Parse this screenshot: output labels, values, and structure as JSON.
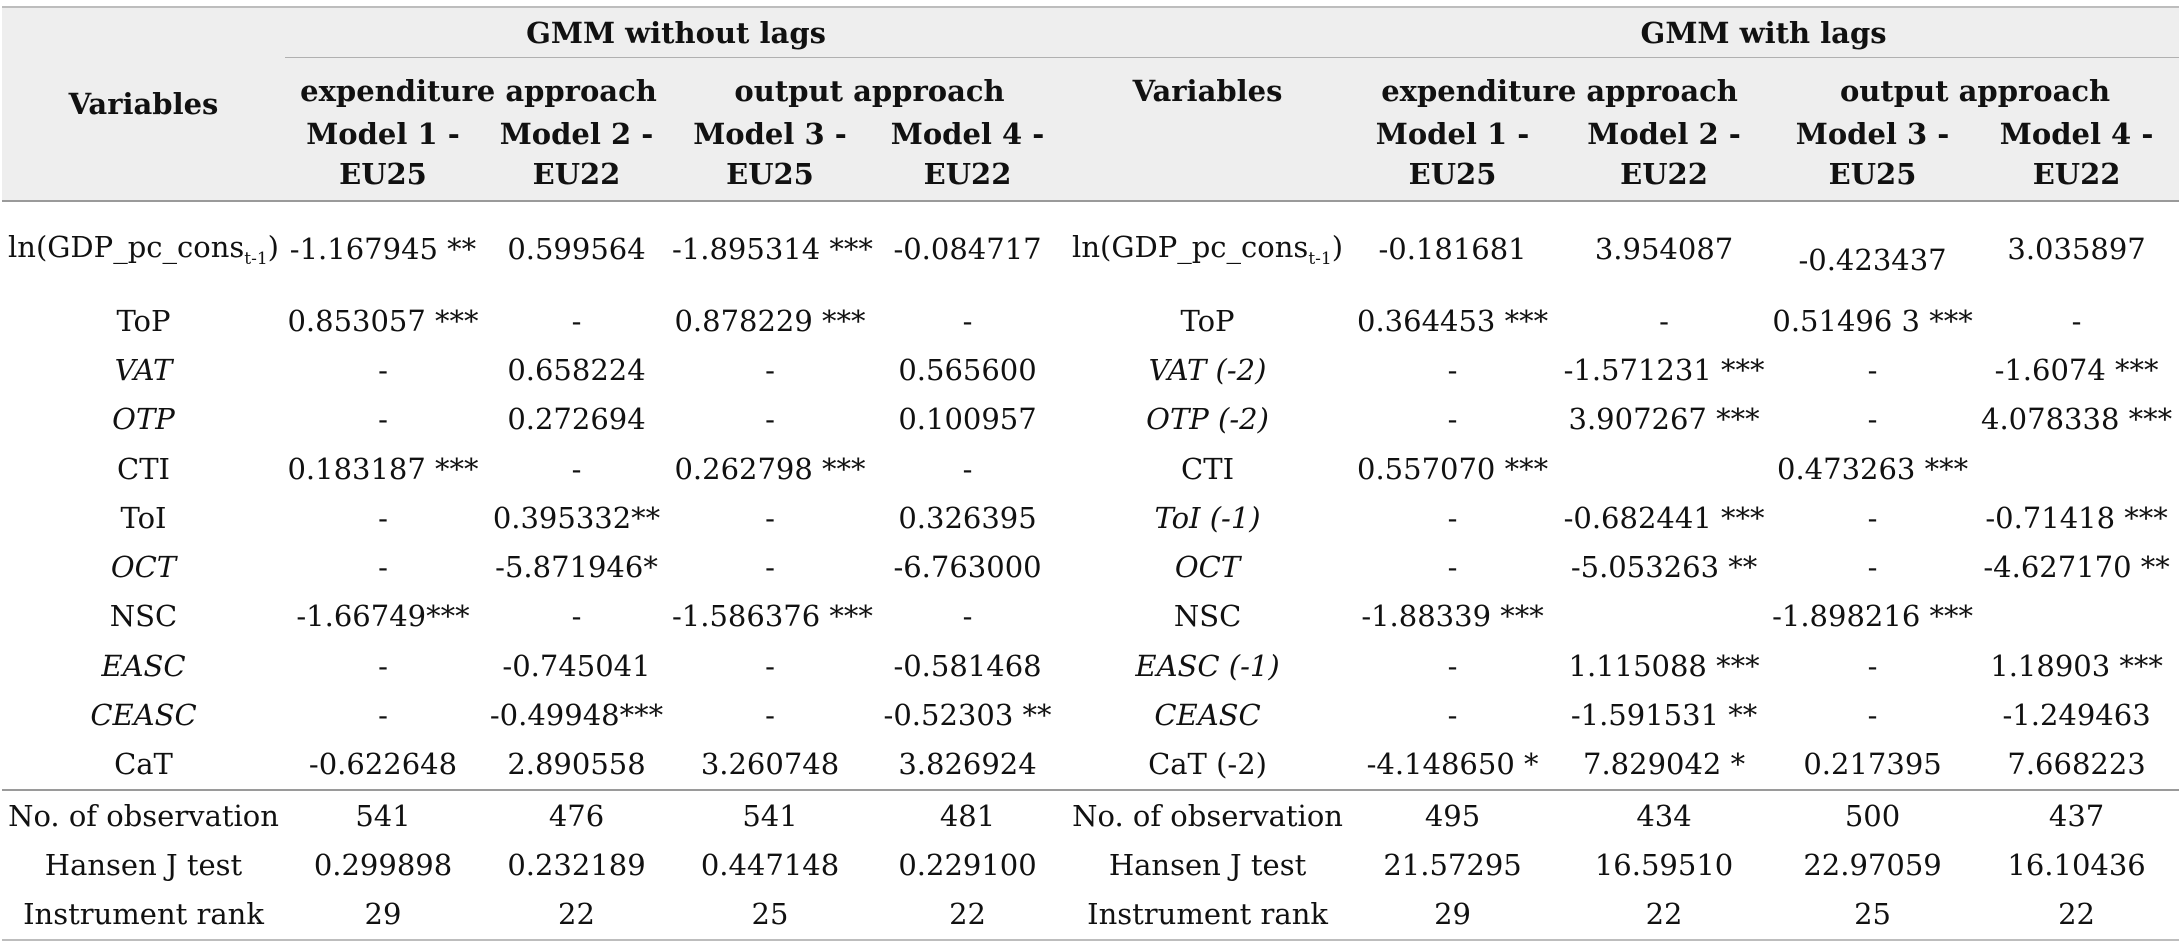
{
  "headers": {
    "variables": "Variables",
    "group_left": "GMM without lags",
    "group_right": "GMM with lags",
    "expenditure": "expenditure approach",
    "output": "output approach",
    "models": [
      {
        "line1": "Model 1 -",
        "line2": "EU25"
      },
      {
        "line1": "Model 2 -",
        "line2": "EU22"
      },
      {
        "line1": "Model 3 -",
        "line2": "EU25"
      },
      {
        "line1": "Model 4 -",
        "line2": "EU22"
      }
    ]
  },
  "first_row": {
    "left_var": "ln(GDP_pc_cons",
    "left_sub": "t-1",
    "left_close": ")",
    "right_var": "ln(GDP_pc_cons",
    "right_sub": "t-1",
    "right_close": ")",
    "left_vals": [
      "-1.167945 **",
      "0.599564",
      "-1.895314 ***",
      "-0.084717"
    ],
    "right_vals": [
      "-0.181681",
      "3.954087",
      "-0.423437",
      "3.035897"
    ]
  },
  "rows": [
    {
      "lv": "ToP",
      "lvi": false,
      "l": [
        "0.853057 ***",
        "-",
        "0.878229 ***",
        "-"
      ],
      "rv": "ToP",
      "rvi": false,
      "r": [
        "0.364453 ***",
        "-",
        "0.51496 3 ***",
        "-"
      ]
    },
    {
      "lv": "VAT",
      "lvi": true,
      "l": [
        "-",
        "0.658224",
        "-",
        "0.565600"
      ],
      "rv": "VAT (-2)",
      "rvi": true,
      "r": [
        "-",
        "-1.571231 ***",
        "-",
        "-1.6074 ***"
      ]
    },
    {
      "lv": "OTP",
      "lvi": true,
      "l": [
        "-",
        "0.272694",
        "-",
        "0.100957"
      ],
      "rv": "OTP (-2)",
      "rvi": true,
      "r": [
        "-",
        "3.907267 ***",
        "-",
        "4.078338 ***"
      ]
    },
    {
      "lv": "CTI",
      "lvi": false,
      "l": [
        "0.183187 ***",
        "-",
        "0.262798 ***",
        "-"
      ],
      "rv": "CTI",
      "rvi": false,
      "r": [
        "0.557070 ***",
        "",
        "0.473263 ***",
        ""
      ]
    },
    {
      "lv": "ToI",
      "lvi": false,
      "l": [
        "-",
        "0.395332**",
        "-",
        "0.326395"
      ],
      "rv": "ToI (-1)",
      "rvi": true,
      "r": [
        "-",
        "-0.682441 ***",
        "-",
        "-0.71418 ***"
      ]
    },
    {
      "lv": "OCT",
      "lvi": true,
      "l": [
        "-",
        "-5.871946*",
        "-",
        "-6.763000"
      ],
      "rv": "OCT",
      "rvi": true,
      "r": [
        "-",
        "-5.053263 **",
        "-",
        "-4.627170 **"
      ]
    },
    {
      "lv": "NSC",
      "lvi": false,
      "l": [
        "-1.66749***",
        "-",
        "-1.586376 ***",
        "-"
      ],
      "rv": "NSC",
      "rvi": false,
      "r": [
        "-1.88339 ***",
        "",
        "-1.898216 ***",
        ""
      ]
    },
    {
      "lv": "EASC",
      "lvi": true,
      "l": [
        "-",
        "-0.745041",
        "-",
        "-0.581468"
      ],
      "rv": "EASC (-1)",
      "rvi": true,
      "r": [
        "-",
        "1.115088 ***",
        "-",
        "1.18903 ***"
      ]
    },
    {
      "lv": "CEASC",
      "lvi": true,
      "l": [
        "-",
        "-0.49948***",
        "-",
        "-0.52303 **"
      ],
      "rv": "CEASC",
      "rvi": true,
      "r": [
        "-",
        "-1.591531 **",
        "-",
        "-1.249463"
      ]
    },
    {
      "lv": "CaT",
      "lvi": false,
      "l": [
        "-0.622648",
        "2.890558",
        "3.260748",
        "3.826924"
      ],
      "rv": "CaT (-2)",
      "rvi": false,
      "r": [
        "-4.148650 *",
        "7.829042 *",
        "0.217395",
        "7.668223"
      ]
    }
  ],
  "stats": [
    {
      "lv": "No. of observation",
      "l": [
        "541",
        "476",
        "541",
        "481"
      ],
      "rv": "No. of observation",
      "r": [
        "495",
        "434",
        "500",
        "437"
      ]
    },
    {
      "lv": "Hansen J test",
      "l": [
        "0.299898",
        "0.232189",
        "0.447148",
        "0.229100"
      ],
      "rv": "Hansen J test",
      "r": [
        "21.57295",
        "16.59510",
        "22.97059",
        "16.10436"
      ]
    },
    {
      "lv": "Instrument rank",
      "l": [
        "29",
        "22",
        "25",
        "22"
      ],
      "rv": "Instrument rank",
      "r": [
        "29",
        "22",
        "25",
        "22"
      ]
    }
  ]
}
